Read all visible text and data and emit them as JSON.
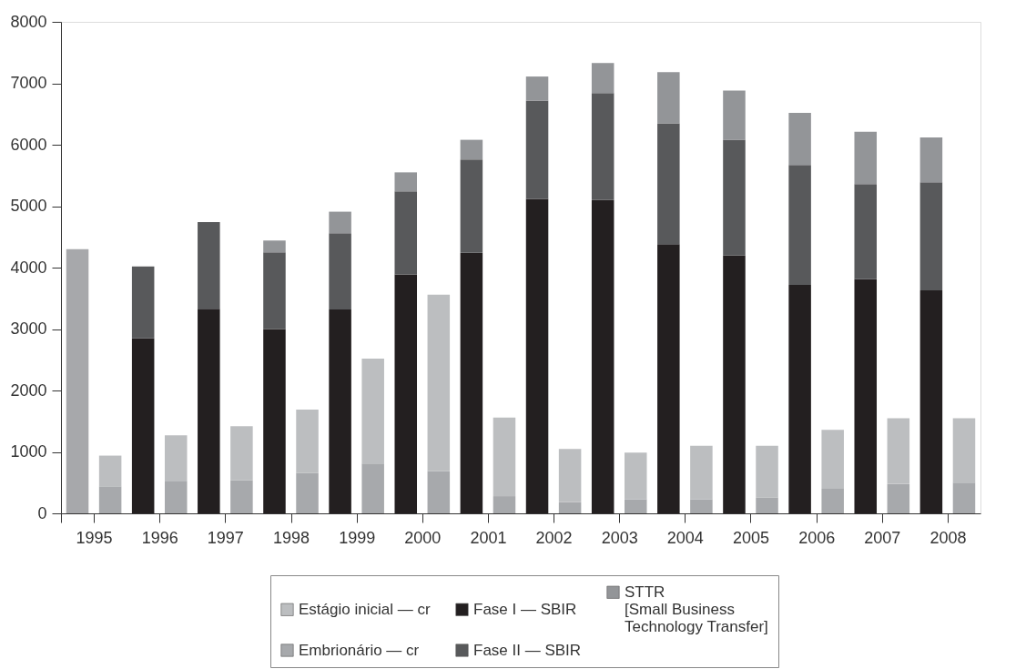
{
  "chart_data": {
    "type": "bar",
    "stacked": true,
    "categories": [
      "1995",
      null,
      "1996",
      null,
      "1997",
      null,
      "1998",
      null,
      "1999",
      null,
      "2000",
      null,
      "2001",
      null,
      "2002",
      null,
      "2003",
      null,
      "2004",
      null,
      "2005",
      null,
      "2006",
      null,
      "2007",
      null,
      "2008",
      null
    ],
    "series": [
      {
        "color": "#a7a8ab",
        "values": [
          4300,
          null,
          null,
          null,
          null,
          null,
          null,
          null,
          null,
          null,
          null,
          null,
          null,
          null,
          null,
          null,
          null,
          null,
          null,
          null,
          null,
          null,
          null,
          null,
          null,
          null,
          null,
          null
        ]
      },
      {
        "name": "Fase I — SBIR",
        "color": "#231f20",
        "values": [
          null,
          null,
          2850,
          null,
          3330,
          null,
          3000,
          null,
          3320,
          null,
          3890,
          null,
          4240,
          null,
          5120,
          null,
          5100,
          null,
          4380,
          null,
          4200,
          null,
          3720,
          null,
          3810,
          null,
          3630,
          null
        ]
      },
      {
        "name": "Fase II — SBIR",
        "color": "#58595b",
        "values": [
          null,
          null,
          1170,
          null,
          1410,
          null,
          1250,
          null,
          1240,
          null,
          1350,
          null,
          1520,
          null,
          1600,
          null,
          1740,
          null,
          1970,
          null,
          1880,
          null,
          1950,
          null,
          1550,
          null,
          1760,
          null
        ]
      },
      {
        "name": "STTR\n[Small Business\nTechnology Transfer]",
        "color": "#939598",
        "values": [
          null,
          null,
          null,
          null,
          null,
          null,
          190,
          null,
          350,
          null,
          310,
          null,
          320,
          null,
          390,
          null,
          490,
          null,
          830,
          null,
          800,
          null,
          850,
          null,
          850,
          null,
          730,
          null
        ]
      },
      {
        "name": "Embrionário — cr",
        "color": "#a7a9ac",
        "values": [
          null,
          440,
          null,
          520,
          null,
          540,
          null,
          660,
          null,
          810,
          null,
          690,
          null,
          280,
          null,
          180,
          null,
          230,
          null,
          230,
          null,
          260,
          null,
          400,
          null,
          480,
          null,
          500
        ]
      },
      {
        "name": "Estágio inicial — cr",
        "color": "#bcbec0",
        "values": [
          null,
          500,
          null,
          750,
          null,
          880,
          null,
          1030,
          null,
          1710,
          null,
          2870,
          null,
          1280,
          null,
          870,
          null,
          760,
          null,
          870,
          null,
          840,
          null,
          960,
          null,
          1070,
          null,
          1050
        ]
      }
    ],
    "ylim": [
      0,
      8000
    ],
    "yticks": [
      0,
      1000,
      2000,
      3000,
      4000,
      5000,
      6000,
      7000,
      8000
    ],
    "grid": false,
    "legend": "bottom"
  }
}
